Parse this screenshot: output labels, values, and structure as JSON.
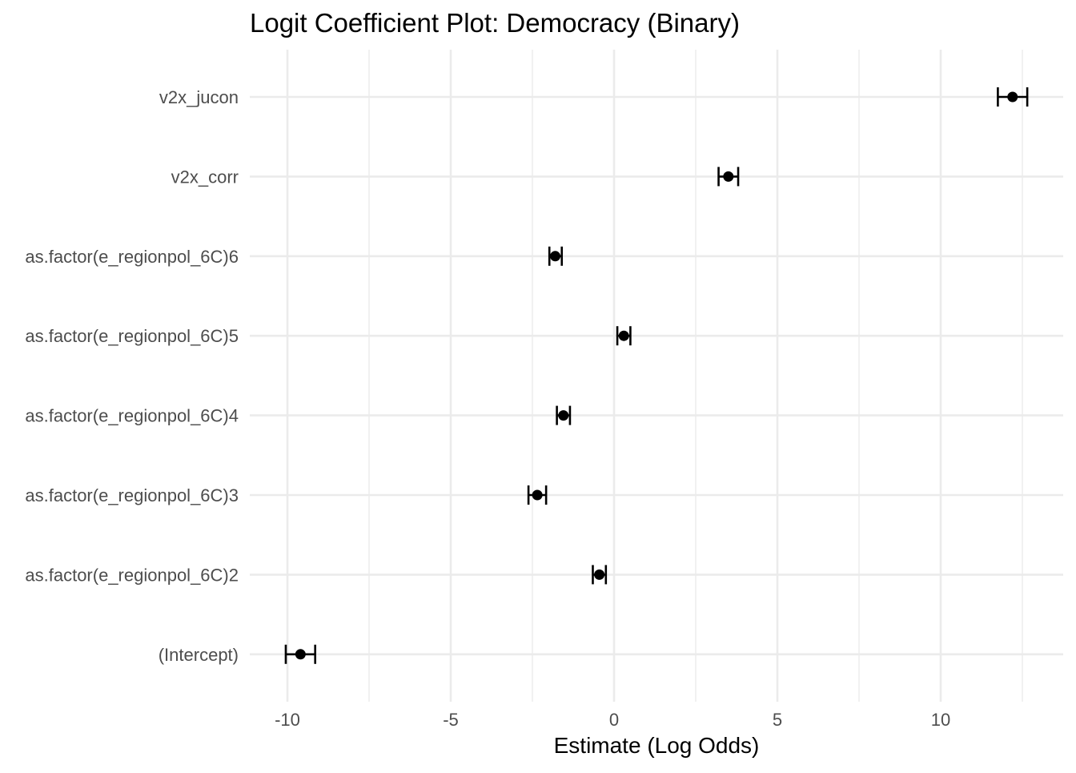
{
  "chart_data": {
    "type": "scatter",
    "title": "Logit Coefficient Plot: Democracy (Binary)",
    "xlabel": "Estimate (Log Odds)",
    "ylabel": "",
    "xlim": [
      -11.2,
      13.2
    ],
    "x_ticks": [
      -10,
      -5,
      0,
      5,
      10
    ],
    "x_tick_labels": [
      "-10",
      "-5",
      "0",
      "5",
      "10"
    ],
    "grid": true,
    "legend": "none",
    "terms": [
      {
        "term": "v2x_jucon",
        "estimate": 12.2,
        "ci_low": 11.75,
        "ci_high": 12.65
      },
      {
        "term": "v2x_corr",
        "estimate": 3.5,
        "ci_low": 3.2,
        "ci_high": 3.8
      },
      {
        "term": "as.factor(e_regionpol_6C)6",
        "estimate": -1.8,
        "ci_low": -1.98,
        "ci_high": -1.6
      },
      {
        "term": "as.factor(e_regionpol_6C)5",
        "estimate": 0.3,
        "ci_low": 0.1,
        "ci_high": 0.5
      },
      {
        "term": "as.factor(e_regionpol_6C)4",
        "estimate": -1.55,
        "ci_low": -1.75,
        "ci_high": -1.35
      },
      {
        "term": "as.factor(e_regionpol_6C)3",
        "estimate": -2.35,
        "ci_low": -2.62,
        "ci_high": -2.08
      },
      {
        "term": "as.factor(e_regionpol_6C)2",
        "estimate": -0.45,
        "ci_low": -0.65,
        "ci_high": -0.25
      },
      {
        "term": "(Intercept)",
        "estimate": -9.6,
        "ci_low": -10.05,
        "ci_high": -9.15
      }
    ],
    "colors": {
      "point": "#000000",
      "grid": "#ebebeb",
      "label": "#4d4d4d"
    }
  }
}
